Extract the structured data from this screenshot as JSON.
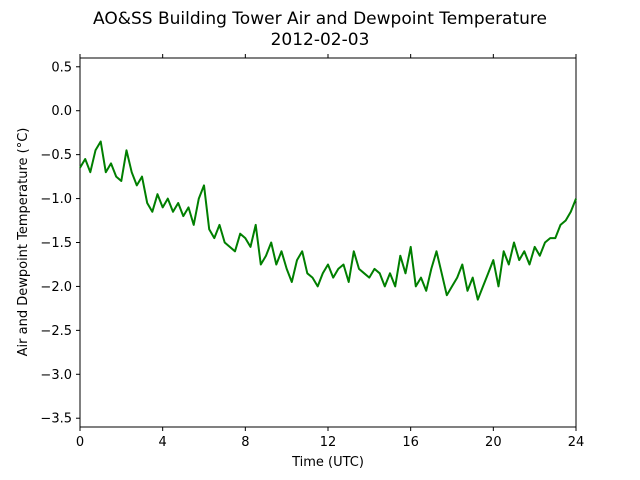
{
  "chart_data": {
    "type": "line",
    "title": "AO&SS Building Tower Air and Dewpoint Temperature",
    "subtitle": "2012-02-03",
    "xlabel": "Time (UTC)",
    "ylabel": "Air and Dewpoint Temperature (°C)",
    "xlim": [
      0,
      24
    ],
    "ylim": [
      -3.6,
      0.6
    ],
    "x_ticks": [
      0,
      4,
      8,
      12,
      16,
      20,
      24
    ],
    "x_tick_labels": [
      "0",
      "4",
      "8",
      "12",
      "16",
      "20",
      "24"
    ],
    "y_ticks": [
      0.5,
      0.0,
      -0.5,
      -1.0,
      -1.5,
      -2.0,
      -2.5,
      -3.0,
      -3.5
    ],
    "y_tick_labels": [
      "0.5",
      "0.0",
      "−0.5",
      "−1.0",
      "−1.5",
      "−2.0",
      "−2.5",
      "−3.0",
      "−3.5"
    ],
    "grid": false,
    "legend": "none",
    "series": [
      {
        "color": "#007f00",
        "x": [
          0,
          0.25,
          0.5,
          0.75,
          1,
          1.25,
          1.5,
          1.75,
          2,
          2.25,
          2.5,
          2.75,
          3,
          3.25,
          3.5,
          3.75,
          4,
          4.25,
          4.5,
          4.75,
          5,
          5.25,
          5.5,
          5.75,
          6,
          6.25,
          6.5,
          6.75,
          7,
          7.25,
          7.5,
          7.75,
          8,
          8.25,
          8.5,
          8.75,
          9,
          9.25,
          9.5,
          9.75,
          10,
          10.25,
          10.5,
          10.75,
          11,
          11.25,
          11.5,
          11.75,
          12,
          12.25,
          12.5,
          12.75,
          13,
          13.25,
          13.5,
          13.75,
          14,
          14.25,
          14.5,
          14.75,
          15,
          15.25,
          15.5,
          15.75,
          16,
          16.25,
          16.5,
          16.75,
          17,
          17.25,
          17.5,
          17.75,
          18,
          18.25,
          18.5,
          18.75,
          19,
          19.25,
          19.5,
          19.75,
          20,
          20.25,
          20.5,
          20.75,
          21,
          21.25,
          21.5,
          21.75,
          22,
          22.25,
          22.5,
          22.75,
          23,
          23.25,
          23.5,
          23.75,
          24
        ],
        "y": [
          -0.65,
          -0.55,
          -0.7,
          -0.45,
          -0.35,
          -0.7,
          -0.6,
          -0.75,
          -0.8,
          -0.45,
          -0.7,
          -0.85,
          -0.75,
          -1.05,
          -1.15,
          -0.95,
          -1.1,
          -1.0,
          -1.15,
          -1.05,
          -1.2,
          -1.1,
          -1.3,
          -1.0,
          -0.85,
          -1.35,
          -1.45,
          -1.3,
          -1.5,
          -1.55,
          -1.6,
          -1.4,
          -1.45,
          -1.55,
          -1.3,
          -1.75,
          -1.65,
          -1.5,
          -1.75,
          -1.6,
          -1.8,
          -1.95,
          -1.7,
          -1.6,
          -1.85,
          -1.9,
          -2.0,
          -1.85,
          -1.75,
          -1.9,
          -1.8,
          -1.75,
          -1.95,
          -1.6,
          -1.8,
          -1.85,
          -1.9,
          -1.8,
          -1.85,
          -2.0,
          -1.85,
          -2.0,
          -1.65,
          -1.85,
          -1.55,
          -2.0,
          -1.9,
          -2.05,
          -1.8,
          -1.6,
          -1.85,
          -2.1,
          -2.0,
          -1.9,
          -1.75,
          -2.05,
          -1.9,
          -2.15,
          -2.0,
          -1.85,
          -1.7,
          -2.0,
          -1.6,
          -1.75,
          -1.5,
          -1.7,
          -1.6,
          -1.75,
          -1.55,
          -1.65,
          -1.5,
          -1.45,
          -1.45,
          -1.3,
          -1.25,
          -1.15,
          -1.0
        ]
      }
    ]
  }
}
